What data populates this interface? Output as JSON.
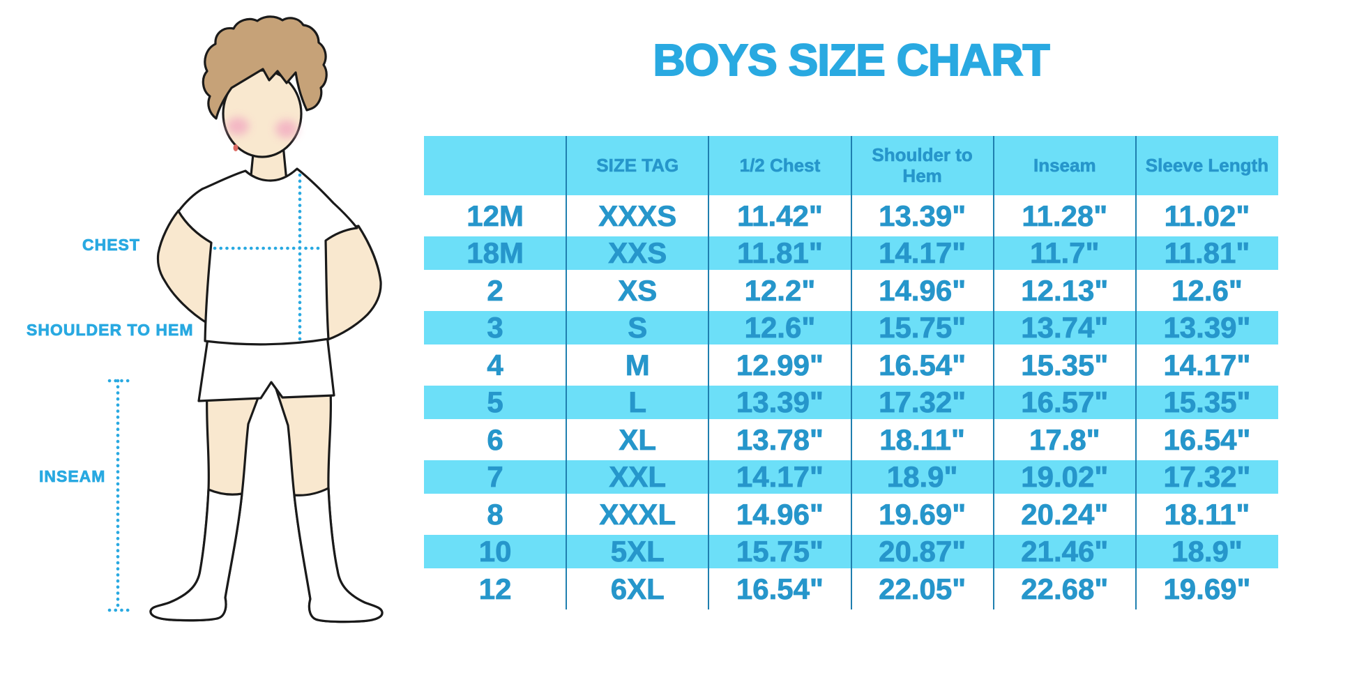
{
  "title": "BOYS SIZE CHART",
  "accent_color": "#29A9E1",
  "table_text_color": "#2696CB",
  "stripe_color": "#6CDFF8",
  "separator_color": "#1F7FAF",
  "diagram": {
    "labels": {
      "chest": "CHEST",
      "shoulder_to_hem": "SHOULDER TO HEM",
      "inseam": "INSEAM"
    },
    "colors": {
      "hair": "#C6A278",
      "skin": "#F9E8CF",
      "blush": "#F2AFC2",
      "clothes": "#FFFFFF",
      "outline": "#1A1A1A"
    }
  },
  "chart_data": {
    "type": "table",
    "columns": [
      "",
      "SIZE TAG",
      "1/2 Chest",
      "Shoulder to Hem",
      "Inseam",
      "Sleeve Length"
    ],
    "rows": [
      [
        "12M",
        "XXXS",
        "11.42\"",
        "13.39\"",
        "11.28\"",
        "11.02\""
      ],
      [
        "18M",
        "XXS",
        "11.81\"",
        "14.17\"",
        "11.7\"",
        "11.81\""
      ],
      [
        "2",
        "XS",
        "12.2\"",
        "14.96\"",
        "12.13\"",
        "12.6\""
      ],
      [
        "3",
        "S",
        "12.6\"",
        "15.75\"",
        "13.74\"",
        "13.39\""
      ],
      [
        "4",
        "M",
        "12.99\"",
        "16.54\"",
        "15.35\"",
        "14.17\""
      ],
      [
        "5",
        "L",
        "13.39\"",
        "17.32\"",
        "16.57\"",
        "15.35\""
      ],
      [
        "6",
        "XL",
        "13.78\"",
        "18.11\"",
        "17.8\"",
        "16.54\""
      ],
      [
        "7",
        "XXL",
        "14.17\"",
        "18.9\"",
        "19.02\"",
        "17.32\""
      ],
      [
        "8",
        "XXXL",
        "14.96\"",
        "19.69\"",
        "20.24\"",
        "18.11\""
      ],
      [
        "10",
        "5XL",
        "15.75\"",
        "20.87\"",
        "21.46\"",
        "18.9\""
      ],
      [
        "12",
        "6XL",
        "16.54\"",
        "22.05\"",
        "22.68\"",
        "19.69\""
      ]
    ]
  }
}
